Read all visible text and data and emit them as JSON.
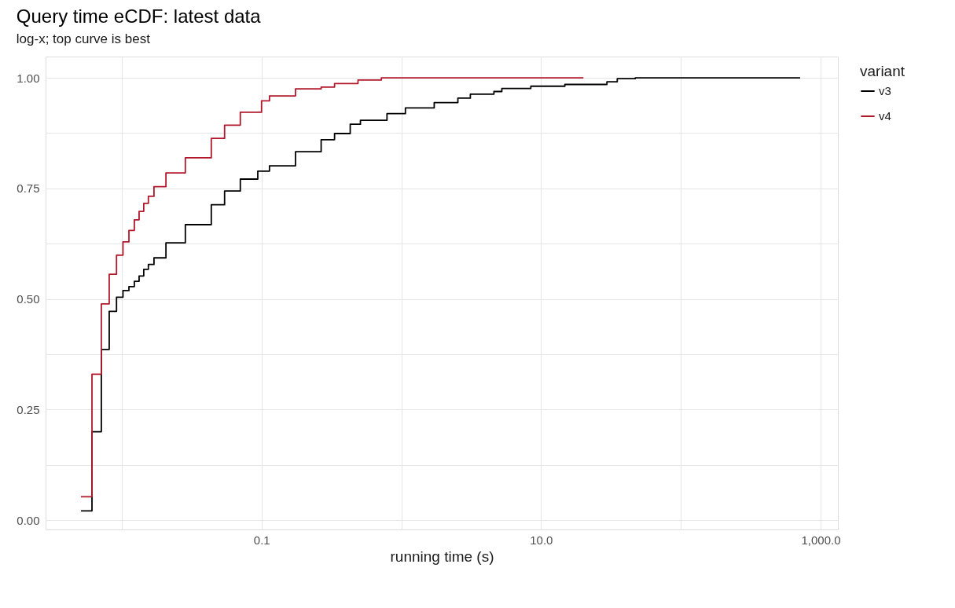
{
  "chart_data": {
    "type": "step",
    "title": "Query time eCDF: latest data",
    "subtitle": "log-x; top curve is best",
    "xlabel": "running time (s)",
    "legend_title": "variant",
    "legend": "right",
    "log": "x",
    "grid": true,
    "xlim": [
      0.00285,
      1330
    ],
    "xticks": [
      {
        "value": 0.01,
        "label": null
      },
      {
        "value": 0.1,
        "label": "0.1"
      },
      {
        "value": 1,
        "label": null
      },
      {
        "value": 10,
        "label": "10.0"
      },
      {
        "value": 100,
        "label": null
      },
      {
        "value": 1000,
        "label": "1,000.0"
      }
    ],
    "ylim": [
      -0.021,
      1.048
    ],
    "yticks": [
      {
        "value": 0,
        "label": "0.00"
      },
      {
        "value": 0.125,
        "label": null
      },
      {
        "value": 0.25,
        "label": "0.25"
      },
      {
        "value": 0.375,
        "label": null
      },
      {
        "value": 0.5,
        "label": "0.50"
      },
      {
        "value": 0.625,
        "label": null
      },
      {
        "value": 0.75,
        "label": "0.75"
      },
      {
        "value": 0.875,
        "label": null
      },
      {
        "value": 1,
        "label": "1.00"
      }
    ],
    "series": [
      {
        "name": "v3",
        "color": "#000000",
        "x": [
          0.0051,
          0.00612,
          0.00714,
          0.00813,
          0.00917,
          0.0102,
          0.01125,
          0.0123,
          0.0133,
          0.01436,
          0.0155,
          0.017,
          0.0207,
          0.0285,
          0.0437,
          0.0544,
          0.0705,
          0.094,
          0.114,
          0.175,
          0.267,
          0.333,
          0.431,
          0.51,
          0.79,
          1.07,
          1.72,
          2.54,
          3.12,
          4.6,
          5.24,
          8.45,
          14.8,
          29.6,
          35.1,
          47.2,
          714
        ],
        "values": [
          0.021,
          0.2,
          0.386,
          0.472,
          0.504,
          0.519,
          0.528,
          0.54,
          0.552,
          0.567,
          0.578,
          0.593,
          0.627,
          0.668,
          0.713,
          0.744,
          0.771,
          0.789,
          0.801,
          0.833,
          0.86,
          0.874,
          0.895,
          0.904,
          0.919,
          0.932,
          0.944,
          0.954,
          0.963,
          0.969,
          0.976,
          0.981,
          0.985,
          0.991,
          0.998,
          1.0,
          1.0
        ]
      },
      {
        "name": "v4",
        "color": "#b2182b",
        "x": [
          0.0051,
          0.00612,
          0.00714,
          0.00813,
          0.00917,
          0.0102,
          0.01125,
          0.0123,
          0.0133,
          0.01436,
          0.0155,
          0.017,
          0.0207,
          0.0285,
          0.0437,
          0.0544,
          0.0705,
          0.1,
          0.114,
          0.175,
          0.267,
          0.333,
          0.49,
          0.72,
          20.1
        ],
        "values": [
          0.053,
          0.33,
          0.489,
          0.556,
          0.599,
          0.629,
          0.655,
          0.679,
          0.698,
          0.716,
          0.732,
          0.754,
          0.785,
          0.819,
          0.863,
          0.893,
          0.922,
          0.948,
          0.959,
          0.975,
          0.979,
          0.987,
          0.995,
          1.0,
          1.0
        ]
      }
    ]
  }
}
